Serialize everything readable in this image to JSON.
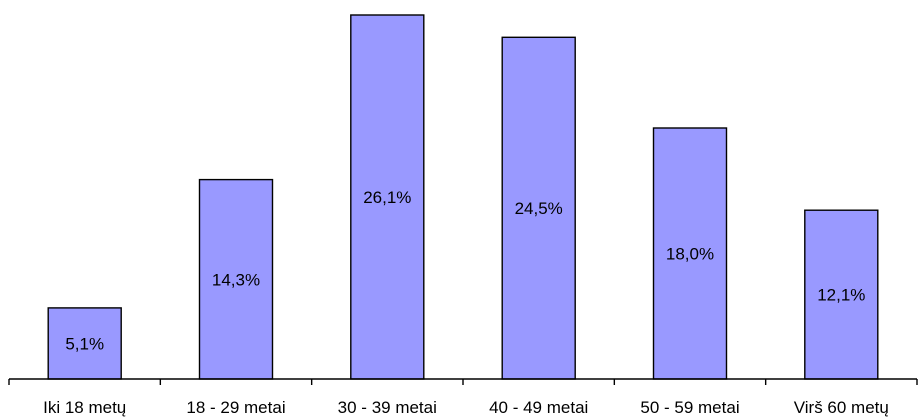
{
  "chart_data": {
    "type": "bar",
    "categories": [
      "Iki 18 metų",
      "18 - 29 metai",
      "30 - 39 metai",
      "40 - 49 metai",
      "50 - 59 metai",
      "Virš 60 metų"
    ],
    "values": [
      5.1,
      14.3,
      26.1,
      24.5,
      18.0,
      12.1
    ],
    "data_labels": [
      "5,1%",
      "14,3%",
      "26,1%",
      "24,5%",
      "18,0%",
      "12,1%"
    ],
    "unit": "%",
    "ylim": [
      0,
      26.1
    ],
    "grid": false,
    "legend": "none",
    "bar_color": "#9999ff",
    "border_color": "#000000"
  }
}
